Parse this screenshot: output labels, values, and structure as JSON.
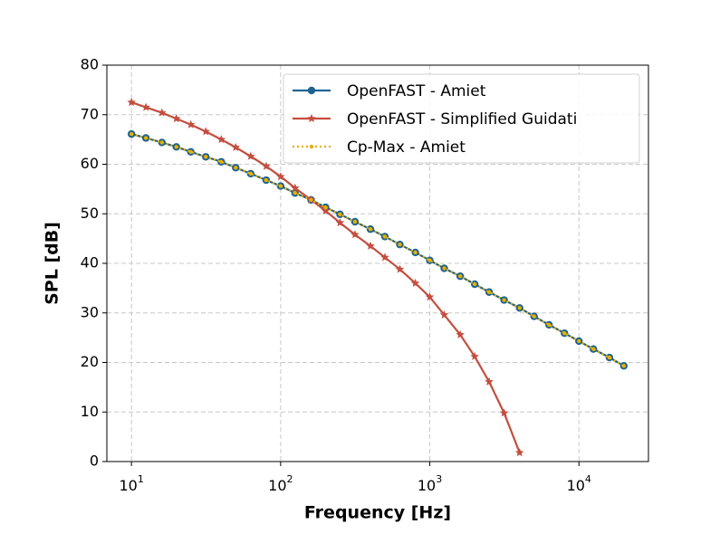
{
  "chart_data": {
    "type": "line",
    "x_label": "Frequency [Hz]",
    "y_label": "SPL [dB]",
    "x": [
      10,
      12.5,
      16,
      20,
      25,
      31.5,
      40,
      50,
      63,
      80,
      100,
      125,
      160,
      200,
      250,
      315,
      400,
      500,
      630,
      800,
      1000,
      1250,
      1600,
      2000,
      2500,
      3150,
      4000,
      5000,
      6300,
      8000,
      10000,
      12500,
      16000,
      20000
    ],
    "series": [
      {
        "name": "OpenFAST - Amiet",
        "color": "#1f6391",
        "marker": "circle",
        "linestyle": "solid",
        "values": [
          66.1,
          65.3,
          64.4,
          63.5,
          62.5,
          61.5,
          60.5,
          59.3,
          58.1,
          56.8,
          55.6,
          54.2,
          52.8,
          51.3,
          49.9,
          48.4,
          46.9,
          45.4,
          43.8,
          42.2,
          40.6,
          39.0,
          37.4,
          35.8,
          34.2,
          32.6,
          31.0,
          29.3,
          27.6,
          25.9,
          24.3,
          22.7,
          21.0,
          19.3
        ]
      },
      {
        "name": "OpenFAST - Simplified Guidati",
        "color": "#c44e3f",
        "marker": "star",
        "linestyle": "solid",
        "values": [
          72.5,
          71.5,
          70.4,
          69.2,
          68.0,
          66.6,
          65.0,
          63.4,
          61.6,
          59.6,
          57.5,
          55.2,
          52.8,
          50.6,
          48.2,
          45.8,
          43.5,
          41.2,
          38.8,
          36.0,
          33.2,
          29.6,
          25.6,
          21.2,
          16.1,
          9.8,
          1.8,
          null,
          null,
          null,
          null,
          null,
          null,
          null
        ]
      },
      {
        "name": "Cp-Max - Amiet",
        "color": "#e6b000",
        "marker": "dot",
        "linestyle": "dotted",
        "values": [
          66.1,
          65.3,
          64.4,
          63.5,
          62.5,
          61.5,
          60.5,
          59.3,
          58.1,
          56.8,
          55.6,
          54.2,
          52.8,
          51.3,
          49.9,
          48.4,
          46.9,
          45.4,
          43.8,
          42.2,
          40.6,
          39.0,
          37.4,
          35.8,
          34.2,
          32.6,
          31.0,
          29.3,
          27.6,
          25.9,
          24.3,
          22.7,
          21.0,
          19.3
        ]
      }
    ],
    "xscale": "log",
    "xlim": [
      6.84,
      29240
    ],
    "xticks": [
      {
        "value": 10,
        "label": "10^1"
      },
      {
        "value": 100,
        "label": "10^2"
      },
      {
        "value": 1000,
        "label": "10^3"
      },
      {
        "value": 10000,
        "label": "10^4"
      }
    ],
    "ylim": [
      0,
      80
    ],
    "yticks": [
      0,
      10,
      20,
      30,
      40,
      50,
      60,
      70,
      80
    ],
    "grid": true,
    "legend": "upper right"
  }
}
